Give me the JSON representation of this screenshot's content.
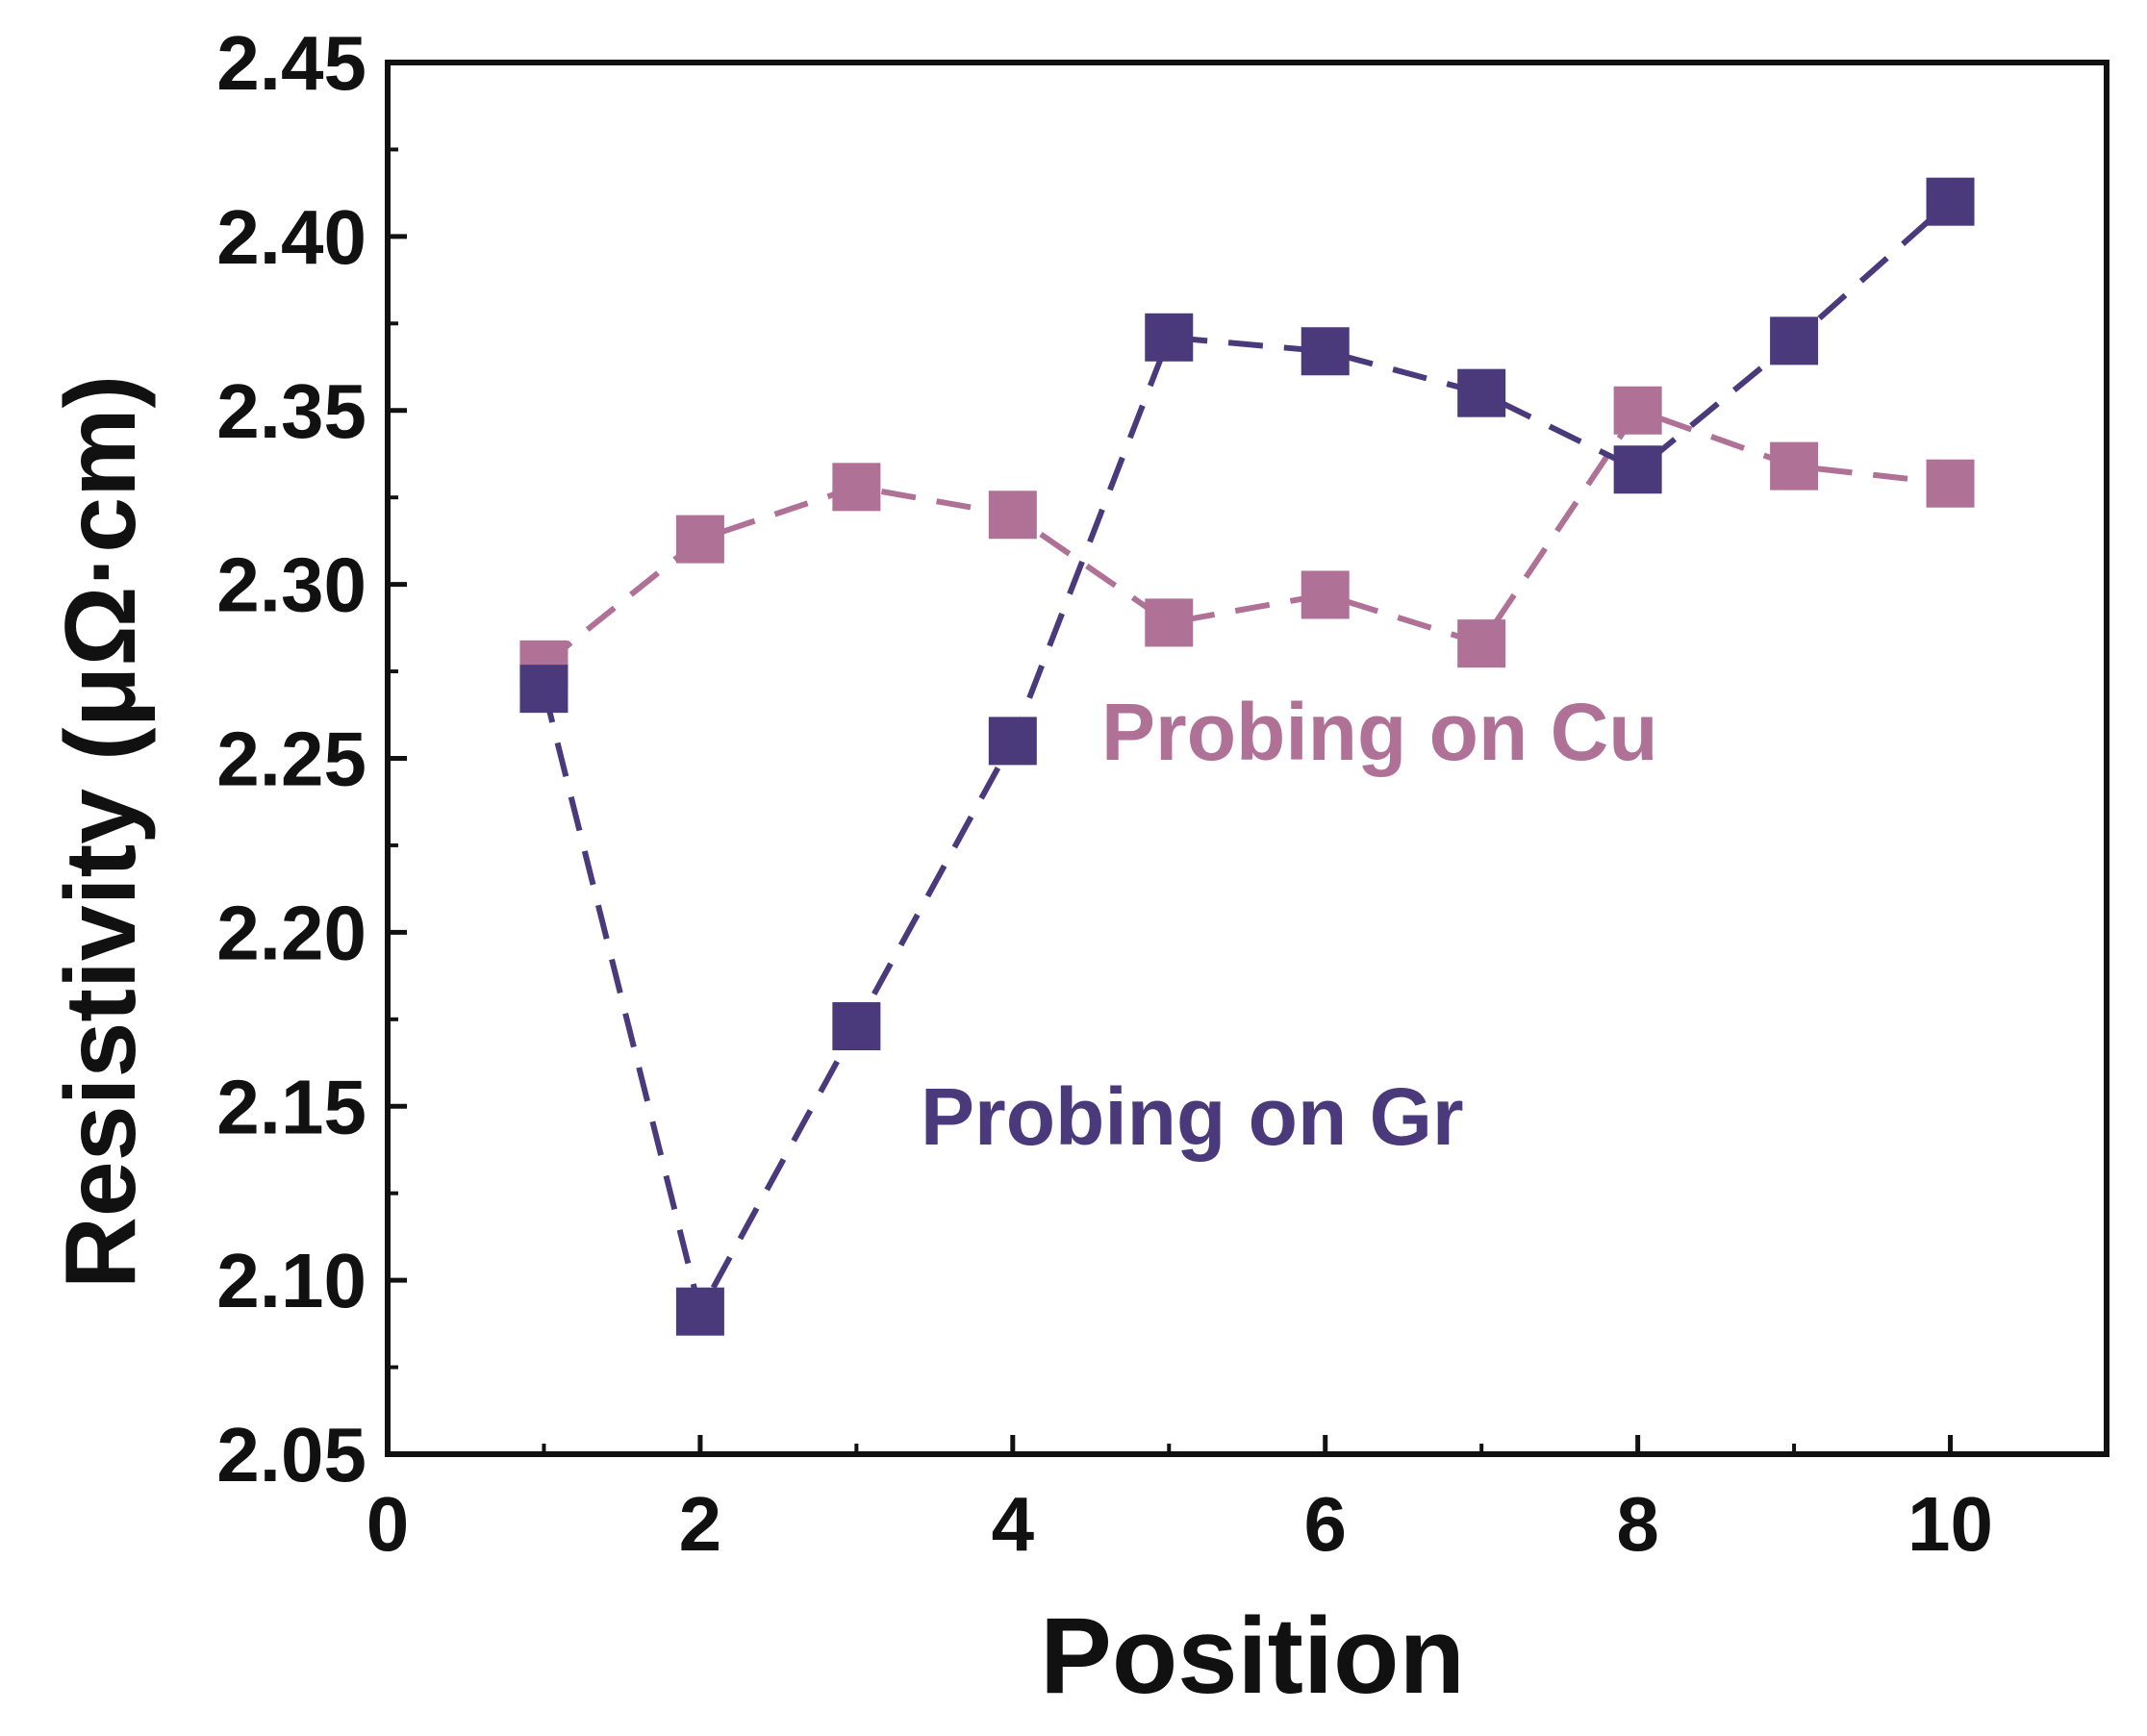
{
  "chart_data": {
    "type": "line",
    "title": "",
    "xlabel": "Position",
    "ylabel": "Resistivity (μΩ·cm)",
    "xlim": [
      0,
      11
    ],
    "ylim": [
      2.05,
      2.45
    ],
    "x_ticks": [
      "0",
      "2",
      "4",
      "6",
      "8",
      "10"
    ],
    "y_ticks": [
      "2.05",
      "2.10",
      "2.15",
      "2.20",
      "2.25",
      "2.30",
      "2.35",
      "2.40",
      "2.45"
    ],
    "series": [
      {
        "name": "Probing on Cu",
        "label": "Probing on Cu",
        "color": "#b07196",
        "x": [
          1,
          2,
          3,
          4,
          5,
          6,
          7,
          8,
          9,
          10
        ],
        "values": [
          2.277,
          2.313,
          2.328,
          2.32,
          2.289,
          2.297,
          2.283,
          2.35,
          2.334,
          2.329
        ]
      },
      {
        "name": "Probing on Gr",
        "label": "Probing on Gr",
        "color": "#4a3a7c",
        "x": [
          1,
          2,
          3,
          4,
          5,
          6,
          7,
          8,
          9,
          10
        ],
        "values": [
          2.27,
          2.091,
          2.173,
          2.255,
          2.371,
          2.367,
          2.355,
          2.333,
          2.37,
          2.41
        ]
      }
    ]
  }
}
